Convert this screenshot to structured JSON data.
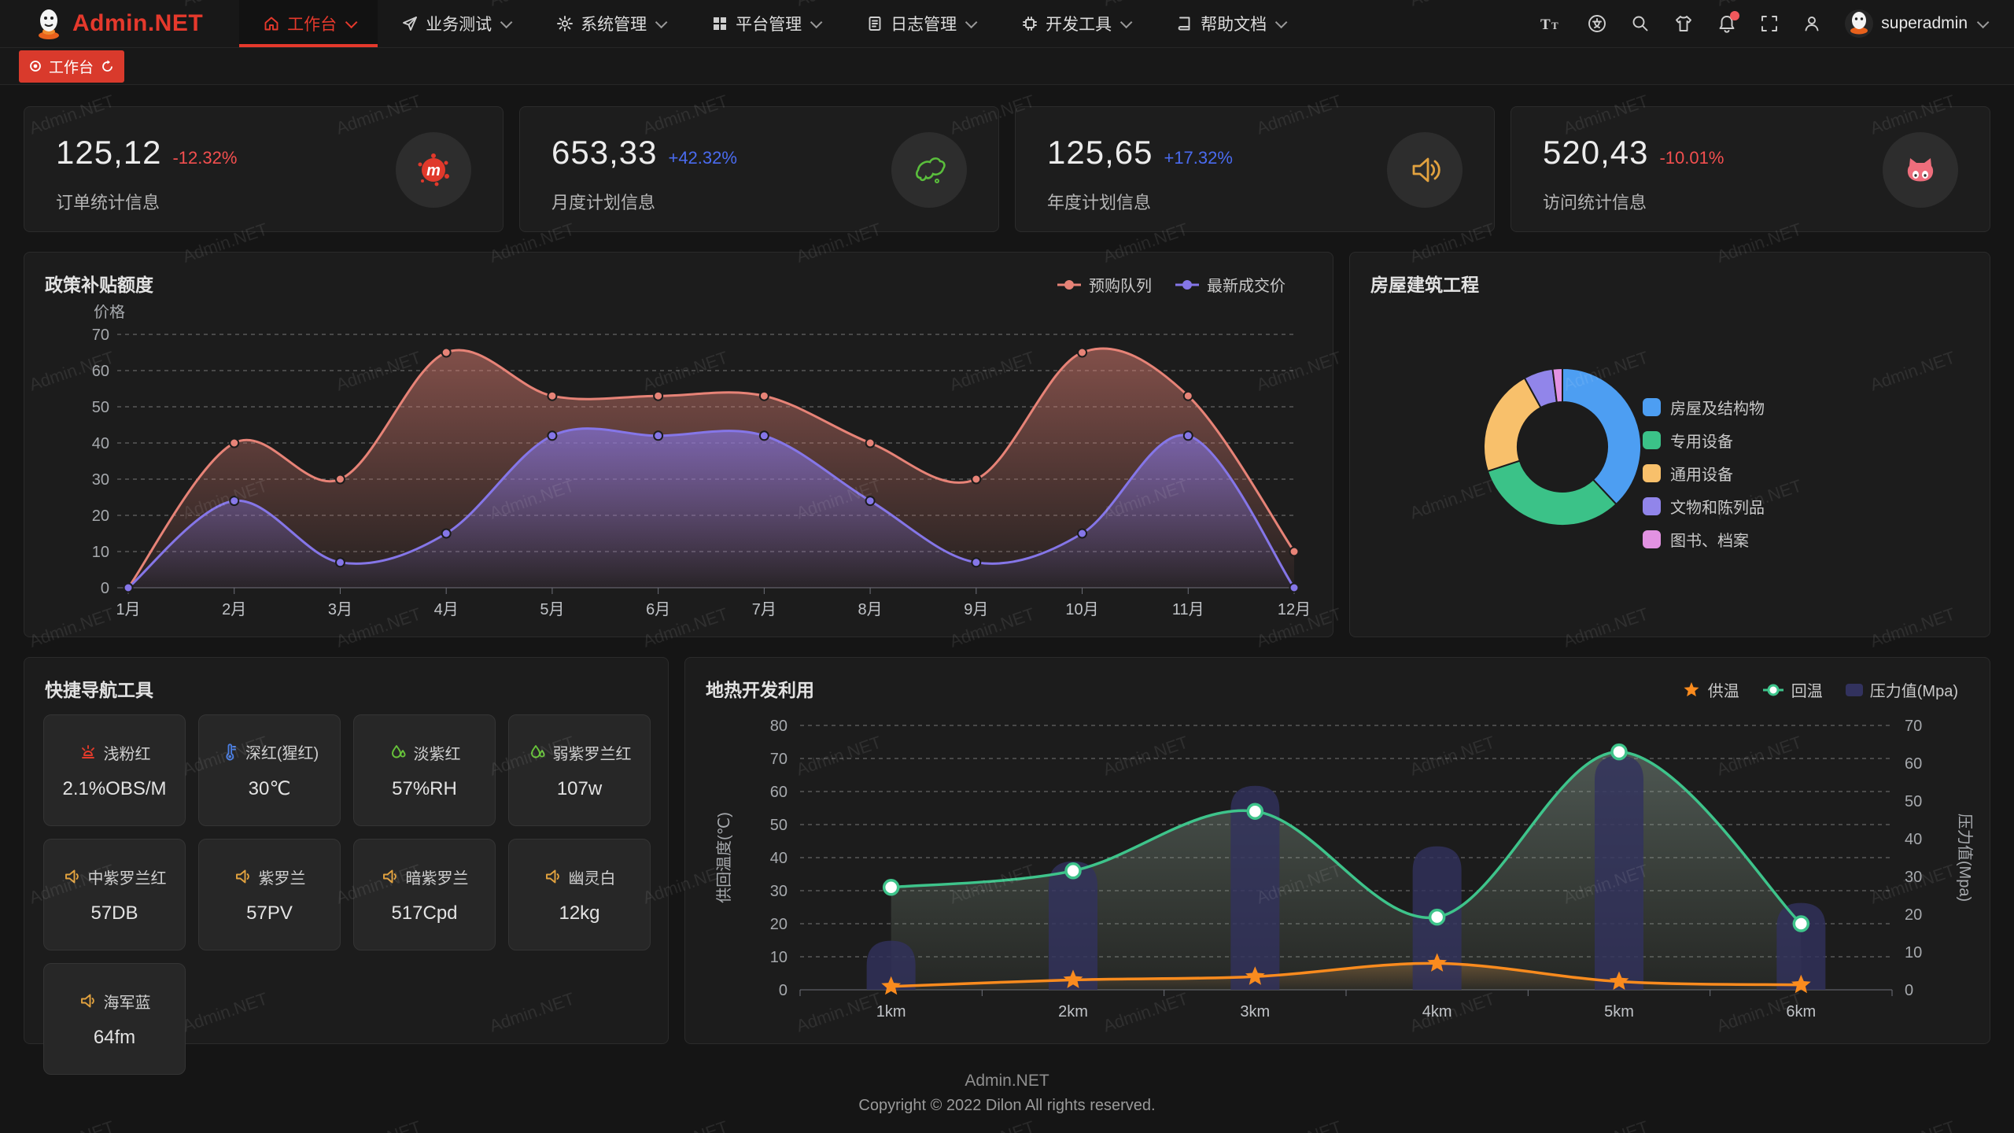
{
  "brand": {
    "logo_text": "Admin.NET",
    "accent_color": "#e5392c"
  },
  "navbar": {
    "menu": [
      {
        "label": "工作台",
        "icon": "home-icon",
        "active": true
      },
      {
        "label": "业务测试",
        "icon": "send-icon",
        "active": false
      },
      {
        "label": "系统管理",
        "icon": "gear-icon",
        "active": false
      },
      {
        "label": "平台管理",
        "icon": "grid-icon",
        "active": false
      },
      {
        "label": "日志管理",
        "icon": "log-icon",
        "active": false
      },
      {
        "label": "开发工具",
        "icon": "chip-icon",
        "active": false
      },
      {
        "label": "帮助文档",
        "icon": "book-icon",
        "active": false
      }
    ],
    "action_icons": [
      "font-size-icon",
      "language-icon",
      "search-icon",
      "theme-icon",
      "bell-icon",
      "fullscreen-icon",
      "user-icon"
    ],
    "user_name": "superadmin"
  },
  "tabbar": {
    "tabs": [
      {
        "label": "工作台",
        "active": true
      }
    ]
  },
  "stat_cards": [
    {
      "value": "125,12",
      "delta": "-12.32%",
      "trend": "down",
      "label": "订单统计信息",
      "icon": "splash-icon"
    },
    {
      "value": "653,33",
      "delta": "+42.32%",
      "trend": "up",
      "label": "月度计划信息",
      "icon": "china-map-icon"
    },
    {
      "value": "125,65",
      "delta": "+17.32%",
      "trend": "up",
      "label": "年度计划信息",
      "icon": "speaker-icon"
    },
    {
      "value": "520,43",
      "delta": "-10.01%",
      "trend": "down",
      "label": "访问统计信息",
      "icon": "cat-icon"
    }
  ],
  "chart_data": [
    {
      "id": "policy_subsidy",
      "type": "area",
      "title": "政策补贴额度",
      "ylabel": "价格",
      "ylim": [
        0,
        70
      ],
      "grid": "dashed",
      "legend_position": "top-right",
      "categories": [
        "1月",
        "2月",
        "3月",
        "4月",
        "5月",
        "6月",
        "7月",
        "8月",
        "9月",
        "10月",
        "11月",
        "12月"
      ],
      "series": [
        {
          "name": "预购队列",
          "color": "#e78377",
          "values": [
            0,
            40,
            30,
            65,
            53,
            53,
            53,
            40,
            30,
            65,
            53,
            10
          ]
        },
        {
          "name": "最新成交价",
          "color": "#8576e8",
          "values": [
            0,
            24,
            7,
            15,
            42,
            42,
            42,
            24,
            7,
            15,
            42,
            0
          ]
        }
      ]
    },
    {
      "id": "housing_projects",
      "type": "pie",
      "donut": true,
      "title": "房屋建筑工程",
      "legend_position": "right",
      "labels": [
        "房屋及结构物",
        "专用设备",
        "通用设备",
        "文物和陈列品",
        "图书、档案"
      ],
      "values": [
        38,
        32,
        22,
        6,
        2
      ],
      "colors": [
        "#4d9ef2",
        "#3bc288",
        "#f8c06b",
        "#9185ea",
        "#e292e2"
      ]
    },
    {
      "id": "geothermal",
      "type": "line-bar",
      "title": "地热开发利用",
      "categories": [
        "1km",
        "2km",
        "3km",
        "4km",
        "5km",
        "6km"
      ],
      "ylabel_left": "供回温度(℃)",
      "ylim_left": [
        0,
        80
      ],
      "ylabel_right": "压力值(Mpa)",
      "ylim_right": [
        0,
        70
      ],
      "grid": "dashed",
      "legend_position": "top-right",
      "series": [
        {
          "name": "供温",
          "type": "line",
          "axis": "left",
          "marker": "star",
          "color": "#fa8b1e",
          "values": [
            1,
            3,
            4,
            8,
            2.5,
            1.5
          ]
        },
        {
          "name": "回温",
          "type": "line",
          "axis": "left",
          "marker": "circle",
          "color": "#3ec48b",
          "values": [
            31,
            36,
            54,
            22,
            72,
            20
          ]
        },
        {
          "name": "压力值(Mpa)",
          "type": "bar",
          "axis": "right",
          "color": "#32325e",
          "values": [
            13,
            34,
            54,
            38,
            62,
            23
          ]
        }
      ]
    }
  ],
  "nav_tools": {
    "title": "快捷导航工具",
    "items": [
      {
        "name": "浅粉红",
        "value": "2.1%OBS/M",
        "icon": "alarm-icon",
        "color": "#e23b2b"
      },
      {
        "name": "深红(猩红)",
        "value": "30℃",
        "icon": "thermometer-icon",
        "color": "#4a7de0"
      },
      {
        "name": "淡紫红",
        "value": "57%RH",
        "icon": "drop-icon",
        "color": "#67c23a"
      },
      {
        "name": "弱紫罗兰红",
        "value": "107w",
        "icon": "drop-icon",
        "color": "#67c23a"
      },
      {
        "name": "中紫罗兰红",
        "value": "57DB",
        "icon": "horn-icon",
        "color": "#e2a23f"
      },
      {
        "name": "紫罗兰",
        "value": "57PV",
        "icon": "horn-icon",
        "color": "#e2a23f"
      },
      {
        "name": "暗紫罗兰",
        "value": "517Cpd",
        "icon": "horn-icon",
        "color": "#e2a23f"
      },
      {
        "name": "幽灵白",
        "value": "12kg",
        "icon": "horn-icon",
        "color": "#e2a23f"
      },
      {
        "name": "海军蓝",
        "value": "64fm",
        "icon": "horn-icon",
        "color": "#e2a23f"
      }
    ]
  },
  "footer": {
    "line1": "Admin.NET",
    "line2": "Copyright © 2022 Dilon All rights reserved."
  },
  "watermark": {
    "text": "Admin.NET"
  }
}
